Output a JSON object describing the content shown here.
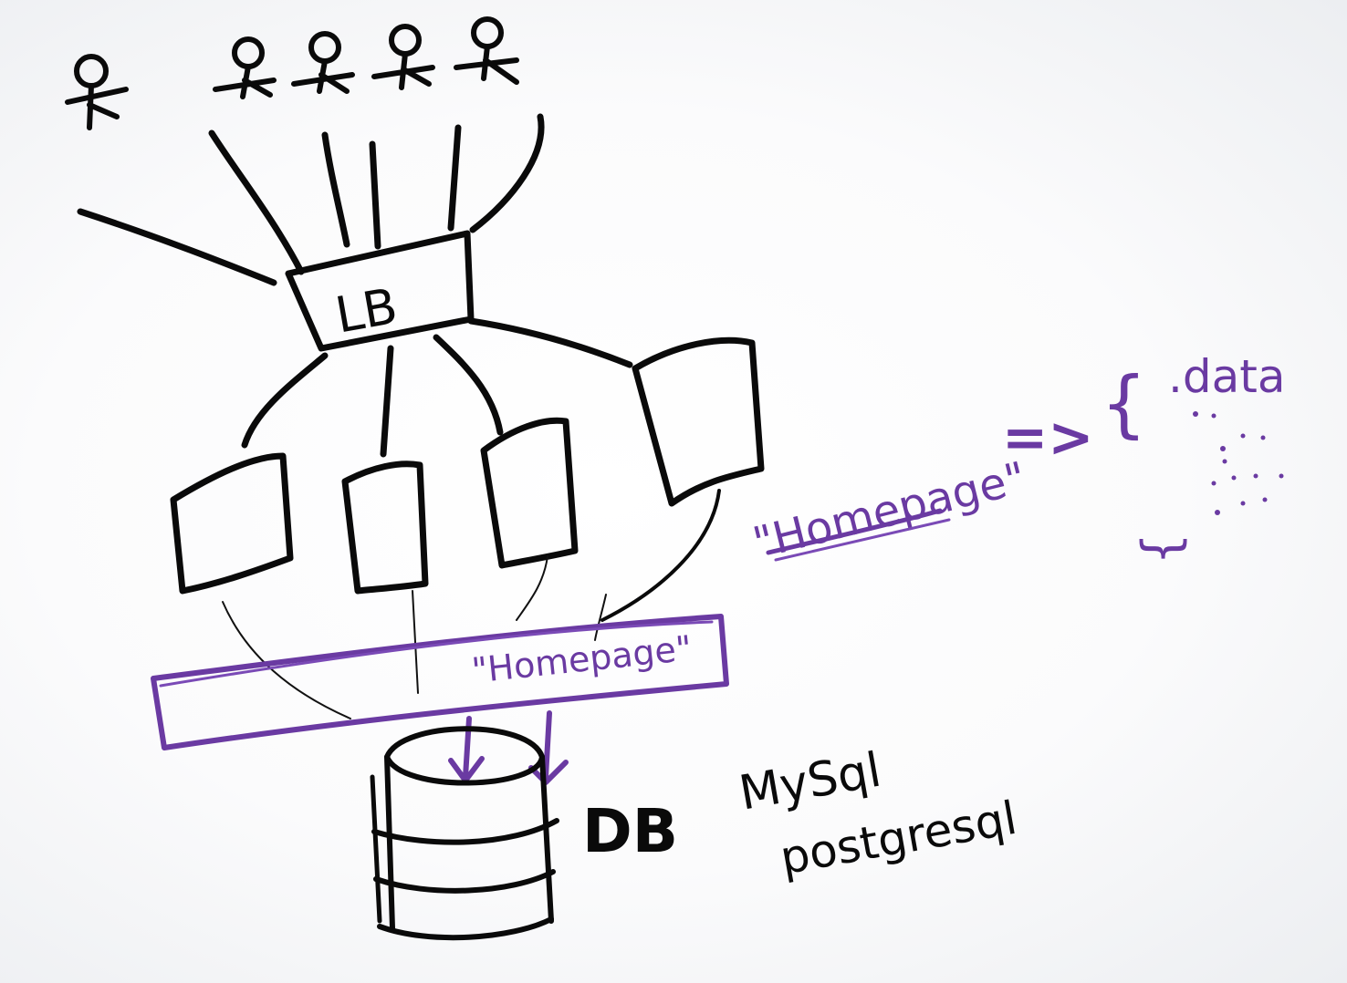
{
  "load_balancer": {
    "label": "LB"
  },
  "cache": {
    "key_label": "\"Homepage\"",
    "value_open": "{",
    "value_text": ".data",
    "value_close": "}",
    "arrow": "=>"
  },
  "cache_inside_label": "\"Homepage\"",
  "database": {
    "label": "DB",
    "engine_line1": "MySql",
    "engine_line2": "postgresql"
  },
  "colors": {
    "ink": "#0a0a0a",
    "marker_purple": "#6a3aa2"
  }
}
